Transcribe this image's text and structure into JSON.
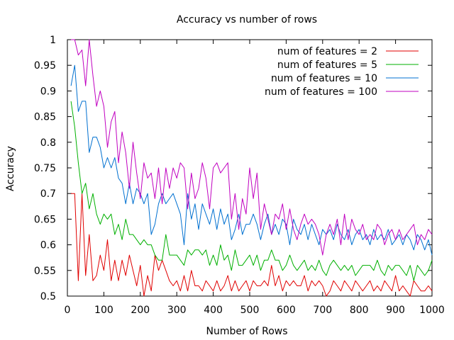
{
  "chart_data": {
    "type": "line",
    "title": "Accuracy vs number of rows",
    "xlabel": "Number of Rows",
    "ylabel": "Accuracy",
    "xlim": [
      0,
      1000
    ],
    "ylim": [
      0.5,
      1
    ],
    "x_ticks": [
      0,
      100,
      200,
      300,
      400,
      500,
      600,
      700,
      800,
      900,
      1000
    ],
    "x_tick_labels": [
      "0",
      "100",
      "200",
      "300",
      "400",
      "500",
      "600",
      "700",
      "800",
      "900",
      "1000"
    ],
    "y_ticks": [
      0.5,
      0.55,
      0.6,
      0.65,
      0.7,
      0.75,
      0.8,
      0.85,
      0.9,
      0.95,
      1
    ],
    "y_tick_labels": [
      "0.5",
      "0.55",
      "0.6",
      "0.65",
      "0.7",
      "0.75",
      "0.8",
      "0.85",
      "0.9",
      "0.95",
      "1"
    ],
    "grid": false,
    "legend_position": "top-right",
    "x": [
      10,
      20,
      30,
      40,
      50,
      60,
      70,
      80,
      90,
      100,
      110,
      120,
      130,
      140,
      150,
      160,
      170,
      180,
      190,
      200,
      210,
      220,
      230,
      240,
      250,
      260,
      270,
      280,
      290,
      300,
      310,
      320,
      330,
      340,
      350,
      360,
      370,
      380,
      390,
      400,
      410,
      420,
      430,
      440,
      450,
      460,
      470,
      480,
      490,
      500,
      510,
      520,
      530,
      540,
      550,
      560,
      570,
      580,
      590,
      600,
      610,
      620,
      630,
      640,
      650,
      660,
      670,
      680,
      690,
      700,
      710,
      720,
      730,
      740,
      750,
      760,
      770,
      780,
      790,
      800,
      810,
      820,
      830,
      840,
      850,
      860,
      870,
      880,
      890,
      900,
      910,
      920,
      930,
      940,
      950,
      960,
      970,
      980,
      990,
      1000
    ],
    "series": [
      {
        "name": "num of features = 2",
        "color": "#e00000",
        "values": [
          0.7,
          0.7,
          0.53,
          0.7,
          0.54,
          0.62,
          0.53,
          0.54,
          0.58,
          0.55,
          0.61,
          0.53,
          0.57,
          0.53,
          0.57,
          0.54,
          0.58,
          0.55,
          0.52,
          0.56,
          0.5,
          0.54,
          0.51,
          0.58,
          0.55,
          0.57,
          0.55,
          0.53,
          0.52,
          0.53,
          0.51,
          0.54,
          0.51,
          0.55,
          0.52,
          0.52,
          0.51,
          0.53,
          0.52,
          0.51,
          0.53,
          0.51,
          0.52,
          0.54,
          0.51,
          0.53,
          0.51,
          0.52,
          0.53,
          0.51,
          0.53,
          0.52,
          0.52,
          0.53,
          0.52,
          0.56,
          0.52,
          0.54,
          0.51,
          0.53,
          0.52,
          0.53,
          0.52,
          0.52,
          0.54,
          0.51,
          0.53,
          0.52,
          0.53,
          0.52,
          0.5,
          0.51,
          0.53,
          0.52,
          0.51,
          0.53,
          0.52,
          0.51,
          0.53,
          0.52,
          0.51,
          0.52,
          0.53,
          0.51,
          0.52,
          0.51,
          0.53,
          0.52,
          0.51,
          0.54,
          0.51,
          0.52,
          0.51,
          0.5,
          0.53,
          0.52,
          0.51,
          0.51,
          0.52,
          0.51
        ]
      },
      {
        "name": "num of features = 5",
        "color": "#00b000",
        "values": [
          0.88,
          0.83,
          0.76,
          0.7,
          0.72,
          0.67,
          0.7,
          0.66,
          0.64,
          0.66,
          0.65,
          0.66,
          0.62,
          0.64,
          0.61,
          0.65,
          0.62,
          0.62,
          0.61,
          0.6,
          0.61,
          0.6,
          0.6,
          0.58,
          0.57,
          0.57,
          0.62,
          0.58,
          0.58,
          0.58,
          0.57,
          0.56,
          0.59,
          0.58,
          0.59,
          0.59,
          0.58,
          0.59,
          0.56,
          0.58,
          0.56,
          0.6,
          0.57,
          0.58,
          0.55,
          0.59,
          0.56,
          0.56,
          0.57,
          0.58,
          0.56,
          0.58,
          0.55,
          0.57,
          0.57,
          0.59,
          0.57,
          0.57,
          0.55,
          0.56,
          0.58,
          0.56,
          0.55,
          0.56,
          0.57,
          0.55,
          0.56,
          0.55,
          0.57,
          0.55,
          0.54,
          0.56,
          0.57,
          0.56,
          0.55,
          0.56,
          0.55,
          0.56,
          0.54,
          0.55,
          0.56,
          0.56,
          0.56,
          0.55,
          0.57,
          0.55,
          0.54,
          0.56,
          0.55,
          0.56,
          0.56,
          0.55,
          0.54,
          0.56,
          0.53,
          0.56,
          0.55,
          0.54,
          0.55,
          0.57
        ]
      },
      {
        "name": "num of features = 10",
        "color": "#0070d0",
        "values": [
          0.91,
          0.95,
          0.86,
          0.88,
          0.88,
          0.78,
          0.81,
          0.81,
          0.79,
          0.75,
          0.77,
          0.75,
          0.77,
          0.73,
          0.72,
          0.68,
          0.72,
          0.68,
          0.71,
          0.7,
          0.68,
          0.7,
          0.62,
          0.64,
          0.68,
          0.7,
          0.68,
          0.69,
          0.7,
          0.68,
          0.66,
          0.6,
          0.7,
          0.65,
          0.68,
          0.63,
          0.68,
          0.66,
          0.64,
          0.67,
          0.63,
          0.67,
          0.64,
          0.66,
          0.61,
          0.63,
          0.66,
          0.62,
          0.64,
          0.64,
          0.66,
          0.64,
          0.61,
          0.64,
          0.66,
          0.62,
          0.64,
          0.62,
          0.65,
          0.64,
          0.6,
          0.65,
          0.63,
          0.62,
          0.64,
          0.61,
          0.64,
          0.62,
          0.6,
          0.63,
          0.62,
          0.63,
          0.61,
          0.64,
          0.62,
          0.61,
          0.63,
          0.6,
          0.62,
          0.63,
          0.61,
          0.62,
          0.6,
          0.63,
          0.61,
          0.62,
          0.61,
          0.63,
          0.6,
          0.61,
          0.62,
          0.6,
          0.62,
          0.61,
          0.59,
          0.62,
          0.61,
          0.59,
          0.61,
          0.58
        ]
      },
      {
        "name": "num of features = 100",
        "color": "#c000c0",
        "values": [
          1.0,
          1.0,
          0.97,
          0.98,
          0.91,
          1.0,
          0.93,
          0.87,
          0.9,
          0.87,
          0.79,
          0.84,
          0.86,
          0.76,
          0.82,
          0.78,
          0.71,
          0.8,
          0.74,
          0.69,
          0.76,
          0.73,
          0.74,
          0.69,
          0.75,
          0.68,
          0.75,
          0.71,
          0.75,
          0.73,
          0.76,
          0.75,
          0.67,
          0.74,
          0.69,
          0.71,
          0.76,
          0.73,
          0.67,
          0.75,
          0.76,
          0.74,
          0.75,
          0.76,
          0.65,
          0.7,
          0.63,
          0.69,
          0.66,
          0.75,
          0.69,
          0.74,
          0.63,
          0.68,
          0.65,
          0.62,
          0.66,
          0.65,
          0.68,
          0.63,
          0.67,
          0.63,
          0.61,
          0.64,
          0.66,
          0.64,
          0.65,
          0.64,
          0.62,
          0.58,
          0.62,
          0.64,
          0.62,
          0.65,
          0.6,
          0.66,
          0.61,
          0.65,
          0.63,
          0.62,
          0.64,
          0.61,
          0.62,
          0.61,
          0.64,
          0.63,
          0.6,
          0.62,
          0.63,
          0.61,
          0.63,
          0.61,
          0.62,
          0.63,
          0.64,
          0.6,
          0.62,
          0.61,
          0.63,
          0.62
        ]
      }
    ]
  }
}
